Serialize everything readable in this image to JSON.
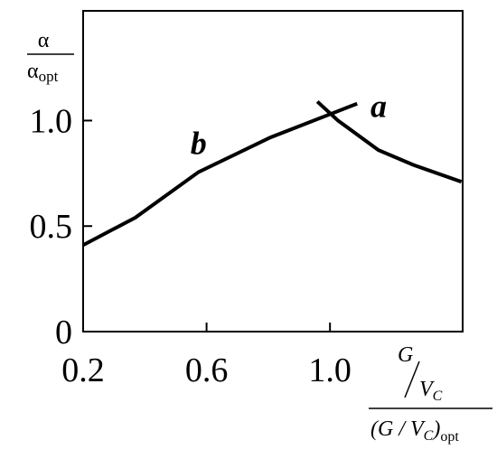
{
  "chart_data": {
    "type": "line",
    "y_label": {
      "numerator": "α",
      "denominator": "α",
      "denominator_subscript": "opt"
    },
    "x_label": {
      "numerator_g": "G",
      "numerator_v": "V",
      "numerator_sub": "C",
      "denominator_open": "(G / V",
      "denominator_sub": "C",
      "denominator_close": ")",
      "denominator_subscript": "opt"
    },
    "series": [
      {
        "name": "b",
        "color": "#000000",
        "x": [
          0.2,
          0.369,
          0.574,
          0.807,
          1.0,
          1.088
        ],
        "values": [
          0.41,
          0.54,
          0.756,
          0.92,
          1.03,
          1.08
        ]
      },
      {
        "name": "a",
        "color": "#000000",
        "x": [
          0.959,
          1.026,
          1.157,
          1.27,
          1.426
        ],
        "values": [
          1.09,
          1.0,
          0.86,
          0.79,
          0.71
        ]
      }
    ],
    "xlim": [
      0.2,
      1.43
    ],
    "ylim": [
      0,
      1.52
    ],
    "xticks": [
      0.2,
      0.6,
      {
        "value": 1,
        "label": "1.0"
      }
    ],
    "yticks": [
      0,
      0.5,
      {
        "value": 1,
        "label": "1.0"
      }
    ]
  }
}
